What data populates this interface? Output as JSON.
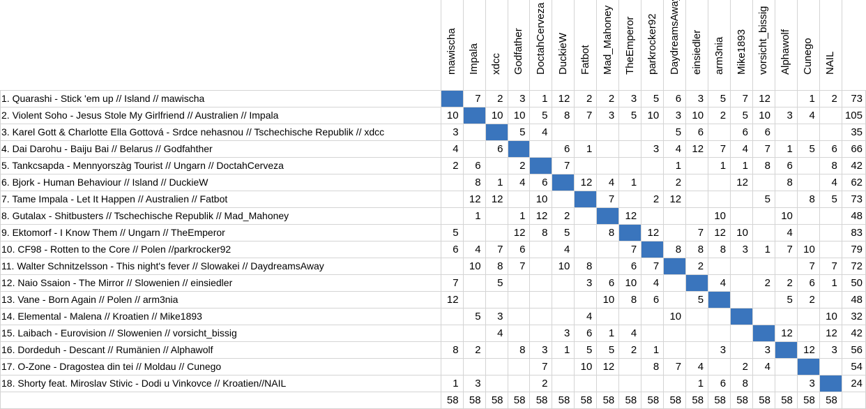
{
  "voters": [
    "mawischa",
    "Impala",
    "xdcc",
    "Godfather",
    "DoctahCerveza",
    "DuckieW",
    "Fatbot",
    "Mad_Mahoney",
    "TheEmperor",
    "parkrocker92",
    "DaydreamsAway",
    "einsiedler",
    "arm3nia",
    "Mike1893",
    "vorsicht_bissig",
    "Alphawolf",
    "Cunego",
    "NAIL"
  ],
  "rows": [
    {
      "label": "1. Quarashi - Stick 'em up // Island // mawischa",
      "cells": [
        "",
        "7",
        "2",
        "3",
        "1",
        "12",
        "2",
        "2",
        "3",
        "5",
        "6",
        "3",
        "5",
        "7",
        "12",
        "",
        "1",
        "2"
      ],
      "total": "73"
    },
    {
      "label": "2. Violent Soho - Jesus Stole My Girlfriend // Australien // Impala",
      "cells": [
        "10",
        "",
        "10",
        "10",
        "5",
        "8",
        "7",
        "3",
        "5",
        "10",
        "3",
        "10",
        "2",
        "5",
        "10",
        "3",
        "4",
        ""
      ],
      "total": "105"
    },
    {
      "label": "3. Karel Gott & Charlotte Ella Gottová - Srdce nehasnou // Tschechische Republik // xdcc",
      "cells": [
        "3",
        "",
        "",
        "5",
        "4",
        "",
        "",
        "",
        "",
        "",
        "5",
        "6",
        "",
        "6",
        "6",
        "",
        "",
        ""
      ],
      "total": "35"
    },
    {
      "label": "4. Dai Darohu - Baiju Bai // Belarus // Godfahther",
      "cells": [
        "4",
        "",
        "6",
        "",
        "",
        "6",
        "1",
        "",
        "",
        "3",
        "4",
        "12",
        "7",
        "4",
        "7",
        "1",
        "5",
        "6"
      ],
      "total": "66"
    },
    {
      "label": "5. Tankcsapda - Mennyorszàg Tourist // Ungarn // DoctahCerveza",
      "cells": [
        "2",
        "6",
        "",
        "2",
        "",
        "7",
        "",
        "",
        "",
        "",
        "1",
        "",
        "1",
        "1",
        "8",
        "6",
        "",
        "8"
      ],
      "total": "42"
    },
    {
      "label": "6. Bjork - Human Behaviour // Island // DuckieW",
      "cells": [
        "",
        "8",
        "1",
        "4",
        "6",
        "",
        "12",
        "4",
        "1",
        "",
        "2",
        "",
        "",
        "12",
        "",
        "8",
        "",
        "4"
      ],
      "total": "62"
    },
    {
      "label": "7. Tame Impala - Let It Happen // Australien // Fatbot",
      "cells": [
        "",
        "12",
        "12",
        "",
        "10",
        "",
        "",
        "7",
        "",
        "2",
        "12",
        "",
        "",
        "",
        "5",
        "",
        "8",
        "5"
      ],
      "total": "73"
    },
    {
      "label": "8. Gutalax - Shitbusters // Tschechische Republik // Mad_Mahoney",
      "cells": [
        "",
        "1",
        "",
        "1",
        "12",
        "2",
        "",
        "",
        "12",
        "",
        "",
        "",
        "10",
        "",
        "",
        "10",
        "",
        ""
      ],
      "total": "48"
    },
    {
      "label": "9. Ektomorf - I Know Them // Ungarn // TheEmperor",
      "cells": [
        "5",
        "",
        "",
        "12",
        "8",
        "5",
        "",
        "8",
        "",
        "12",
        "",
        "7",
        "12",
        "10",
        "",
        "4",
        "",
        ""
      ],
      "total": "83"
    },
    {
      "label": "10. CF98 - Rotten to the Core // Polen //parkrocker92",
      "cells": [
        "6",
        "4",
        "7",
        "6",
        "",
        "4",
        "",
        "",
        "7",
        "",
        "8",
        "8",
        "8",
        "3",
        "1",
        "7",
        "10",
        ""
      ],
      "total": "79"
    },
    {
      "label": "11. Walter Schnitzelsson - This night's fever // Slowakei // DaydreamsAway",
      "cells": [
        "",
        "10",
        "8",
        "7",
        "",
        "10",
        "8",
        "",
        "6",
        "7",
        "",
        "2",
        "",
        "",
        "",
        "",
        "7",
        "7"
      ],
      "total": "72"
    },
    {
      "label": "12. Naio Ssaion - The Mirror // Slowenien // einsiedler",
      "cells": [
        "7",
        "",
        "5",
        "",
        "",
        "",
        "3",
        "6",
        "10",
        "4",
        "",
        "",
        "4",
        "",
        "2",
        "2",
        "6",
        "1"
      ],
      "total": "50"
    },
    {
      "label": "13. Vane - Born Again // Polen // arm3nia",
      "cells": [
        "12",
        "",
        "",
        "",
        "",
        "",
        "",
        "10",
        "8",
        "6",
        "",
        "5",
        "",
        "",
        "",
        "5",
        "2",
        ""
      ],
      "total": "48"
    },
    {
      "label": "14. Elemental - Malena // Kroatien // Mike1893",
      "cells": [
        "",
        "5",
        "3",
        "",
        "",
        "",
        "4",
        "",
        "",
        "",
        "10",
        "",
        "",
        "",
        "",
        "",
        "",
        "10"
      ],
      "total": "32"
    },
    {
      "label": "15. Laibach - Eurovision // Slowenien // vorsicht_bissig",
      "cells": [
        "",
        "",
        "4",
        "",
        "",
        "3",
        "6",
        "1",
        "4",
        "",
        "",
        "",
        "",
        "",
        "",
        "12",
        "",
        "12"
      ],
      "total": "42"
    },
    {
      "label": "16. Dordeduh - Descant // Rumänien // Alphawolf",
      "cells": [
        "8",
        "2",
        "",
        "8",
        "3",
        "1",
        "5",
        "5",
        "2",
        "1",
        "",
        "",
        "3",
        "",
        "3",
        "",
        "12",
        "3"
      ],
      "total": "56"
    },
    {
      "label": "17. O-Zone - Dragostea din tei // Moldau // Cunego",
      "cells": [
        "",
        "",
        "",
        "",
        "7",
        "",
        "10",
        "12",
        "",
        "8",
        "7",
        "4",
        "",
        "2",
        "4",
        "",
        "",
        ""
      ],
      "total": "54"
    },
    {
      "label": "18. Shorty feat. Miroslav Stivic - Dodi u Vinkovce // Kroatien//NAIL",
      "cells": [
        "1",
        "3",
        "",
        "",
        "2",
        "",
        "",
        "",
        "",
        "",
        "",
        "1",
        "6",
        "8",
        "",
        "",
        "3",
        ""
      ],
      "total": "24"
    }
  ],
  "footer": [
    "58",
    "58",
    "58",
    "58",
    "58",
    "58",
    "58",
    "58",
    "58",
    "58",
    "58",
    "58",
    "58",
    "58",
    "58",
    "58",
    "58",
    "58"
  ],
  "colors": {
    "diagonal": "#3a75bd",
    "grid": "#d4d4d4"
  }
}
